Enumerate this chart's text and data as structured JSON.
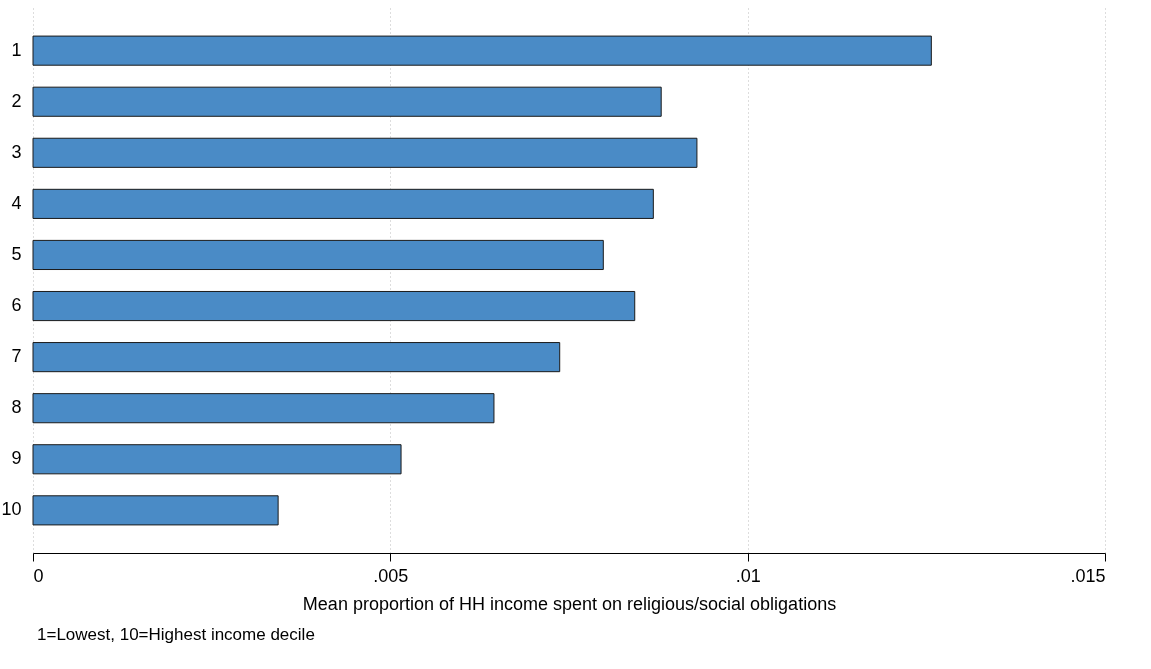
{
  "chart_data": {
    "type": "bar",
    "orientation": "horizontal",
    "categories": [
      "1",
      "2",
      "3",
      "4",
      "5",
      "6",
      "7",
      "8",
      "9",
      "10"
    ],
    "values": [
      0.01257,
      0.00879,
      0.00929,
      0.00868,
      0.00798,
      0.00842,
      0.00737,
      0.00645,
      0.00515,
      0.00343
    ],
    "color": "#4a8bc6",
    "xlim": [
      0,
      0.015
    ],
    "xticks": [
      0,
      {
        "value": 0.005,
        "label": ".005"
      },
      {
        "value": 0.01,
        "label": ".01"
      },
      {
        "value": 0.015,
        "label": ".015"
      }
    ],
    "xlabel": "Mean proportion of HH income spent on religious/social obligations",
    "annotations": [
      "1=Lowest, 10=Highest income decile"
    ],
    "grid": "x"
  }
}
